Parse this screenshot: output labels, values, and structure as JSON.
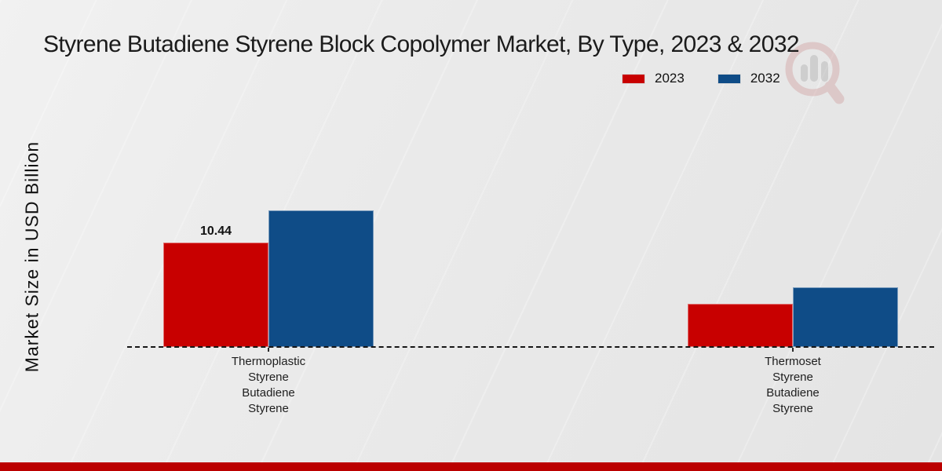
{
  "page": {
    "title": "Styrene Butadiene Styrene Block Copolymer Market, By Type, 2023 & 2032",
    "ylabel": "Market Size in USD Billion",
    "footer_accent_color": "#bb0000",
    "watermark_icon": "magnifier-bar-chart-logo"
  },
  "legend": {
    "items": [
      {
        "label": "2023",
        "color": "#c80000"
      },
      {
        "label": "2032",
        "color": "#0f4c87"
      }
    ]
  },
  "chart_data": {
    "type": "bar",
    "title": "Styrene Butadiene Styrene Block Copolymer Market, By Type, 2023 & 2032",
    "xlabel": "",
    "ylabel": "Market Size in USD Billion",
    "categories": [
      "Thermoplastic\nStyrene\nButadiene\nStyrene",
      "Thermoset\nStyrene\nButadiene\nStyrene"
    ],
    "series": [
      {
        "name": "2023",
        "color": "#c80000",
        "values": [
          10.44,
          4.3
        ],
        "data_labels": [
          "10.44",
          ""
        ]
      },
      {
        "name": "2032",
        "color": "#0f4c87",
        "values": [
          13.66,
          5.95
        ],
        "data_labels": [
          "",
          ""
        ]
      }
    ],
    "ylim": [
      0,
      16
    ],
    "grid": false,
    "legend_position": "top-right",
    "baseline_style": "dashed",
    "y_ticks_visible": false
  }
}
